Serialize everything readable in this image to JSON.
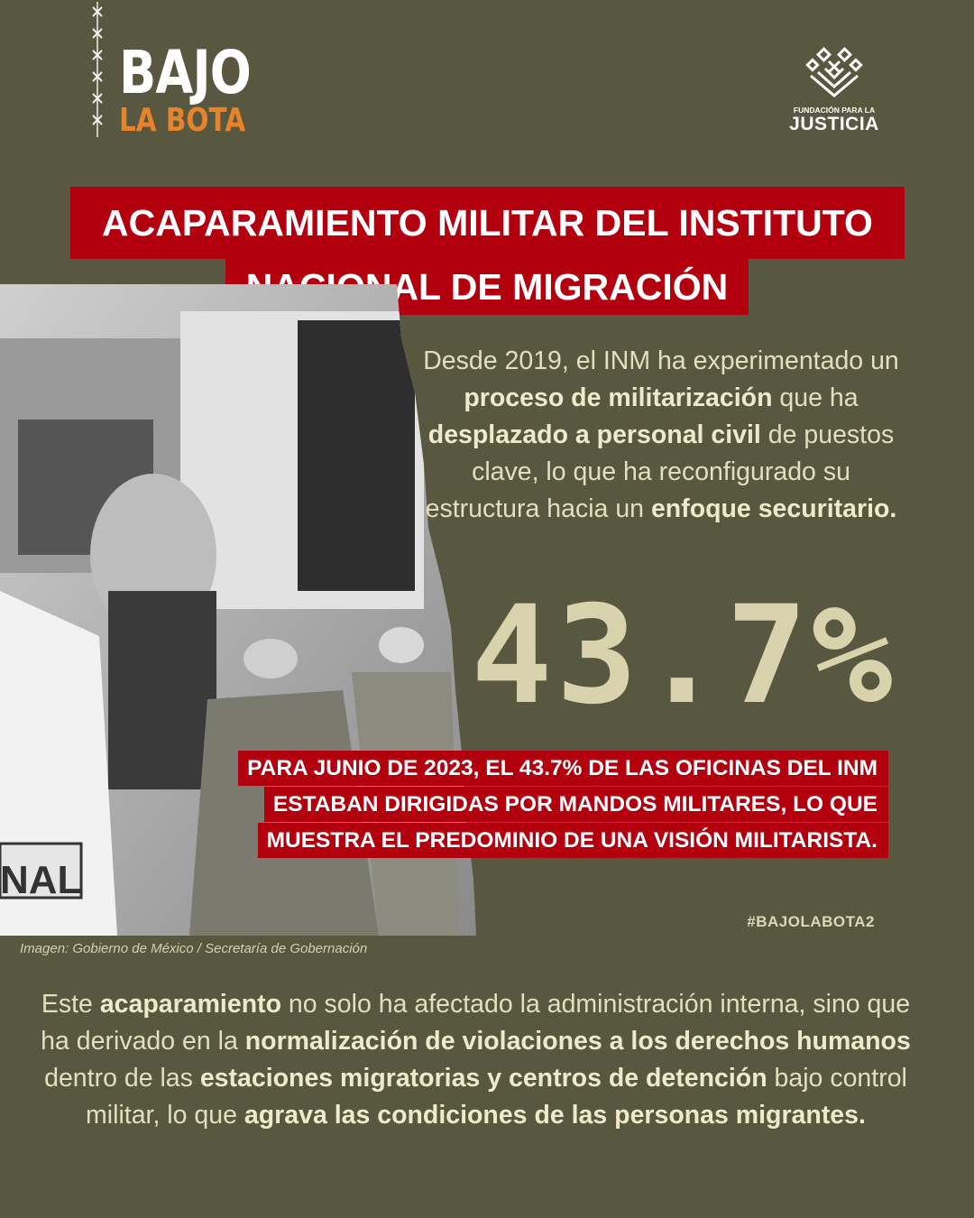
{
  "brand": {
    "logo_line1": "BAJO",
    "logo_line2": "LA BOTA",
    "logo_accent_color": "#e8832a",
    "partner_small": "FUNDACIÓN PARA LA",
    "partner_big": "JUSTICIA"
  },
  "title": {
    "line1": "ACAPARAMIENTO MILITAR DEL INSTITUTO",
    "line2": "NACIONAL DE MIGRACIÓN",
    "bg_color": "#b3000f"
  },
  "intro": [
    {
      "text": "Desde 2019, el INM ha experimentado un ",
      "bold": false
    },
    {
      "text": "proceso de militarización",
      "bold": true
    },
    {
      "text": " que ha ",
      "bold": false
    },
    {
      "text": "desplazado a personal civil",
      "bold": true
    },
    {
      "text": " de puestos clave, lo que ha reconfigurado su estructura hacia un ",
      "bold": false
    },
    {
      "text": "enfoque securitario.",
      "bold": true
    }
  ],
  "stat": "43.7%",
  "highlight": "PARA JUNIO DE 2023, EL 43.7% DE LAS OFICINAS DEL INM ESTABAN DIRIGIDAS POR MANDOS MILITARES, LO QUE MUESTRA EL PREDOMINIO DE UNA VISIÓN MILITARISTA.",
  "hashtag": "#BAJOLABOTA2",
  "image_caption": "Imagen: Gobierno de México / Secretaría de Gobernación",
  "photo_text": "NAL",
  "outro": [
    {
      "text": "Este ",
      "bold": false
    },
    {
      "text": "acaparamiento",
      "bold": true
    },
    {
      "text": " no solo ha afectado la administración interna, sino que ha derivado en la ",
      "bold": false
    },
    {
      "text": "normalización de violaciones a los derechos humanos",
      "bold": true
    },
    {
      "text": " dentro de las ",
      "bold": false
    },
    {
      "text": "estaciones migratorias y centros de detención",
      "bold": true
    },
    {
      "text": " bajo control militar, lo que ",
      "bold": false
    },
    {
      "text": "agrava las condiciones de las personas migrantes.",
      "bold": true
    }
  ]
}
